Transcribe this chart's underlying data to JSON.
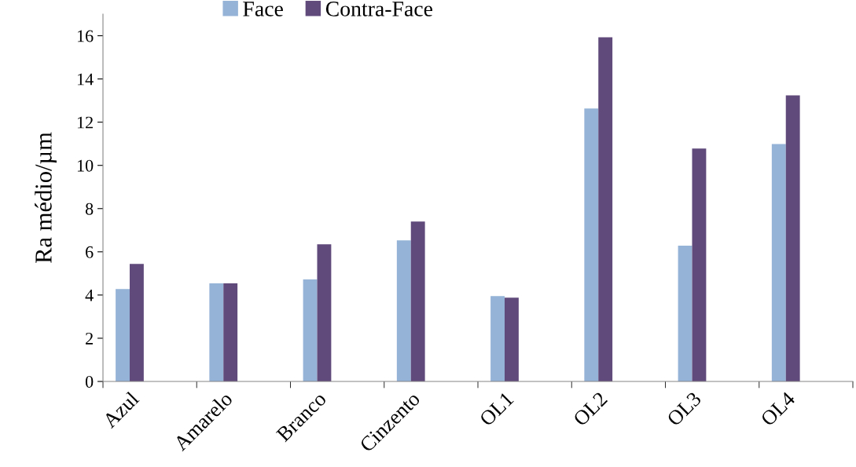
{
  "chart_data": {
    "type": "bar",
    "ylabel": "Ra médio/µm",
    "categories": [
      "Azul",
      "Amarelo",
      "Branco",
      "Cinzento",
      "OL1",
      "OL2",
      "OL3",
      "OL4"
    ],
    "series": [
      {
        "name": "Face",
        "color": "#95b3d7",
        "values": [
          4.28,
          4.54,
          4.72,
          6.53,
          3.95,
          12.63,
          6.28,
          10.99
        ]
      },
      {
        "name": "Contra-Face",
        "color": "#604a7b",
        "values": [
          5.44,
          4.54,
          6.35,
          7.4,
          3.88,
          15.93,
          10.78,
          13.24
        ]
      }
    ],
    "ylim": [
      0,
      17
    ],
    "yticks": [
      0,
      2,
      4,
      6,
      8,
      10,
      12,
      14,
      16
    ],
    "grid": false,
    "legend": "top"
  }
}
